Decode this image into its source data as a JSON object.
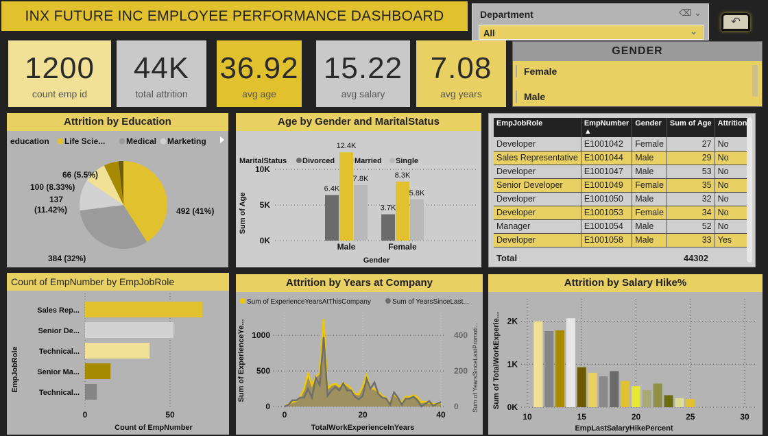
{
  "title": "INX FUTURE INC EMPLOYEE PERFORMANCE DASHBOARD",
  "department_slicer": {
    "label": "Department",
    "value": "All"
  },
  "kpis": [
    {
      "value": "1200",
      "label": "count emp id",
      "bg": "#f1e196"
    },
    {
      "value": "44K",
      "label": "total attrition",
      "bg": "#c9c9c9"
    },
    {
      "value": "36.92",
      "label": "avg age",
      "bg": "#e2c12e"
    },
    {
      "value": "15.22",
      "label": "avg salary",
      "bg": "#c9c9c9"
    },
    {
      "value": "7.08",
      "label": "avg years",
      "bg": "#e8d063"
    }
  ],
  "gender_slicer": {
    "title": "GENDER",
    "items": [
      "Female",
      "Male"
    ]
  },
  "table": {
    "headers": [
      "EmpJobRole",
      "EmpNumber",
      "Gender",
      "Sum of Age",
      "Attrition"
    ],
    "rows": [
      [
        "Developer",
        "E1001042",
        "Female",
        "27",
        "No"
      ],
      [
        "Sales Representative",
        "E1001044",
        "Male",
        "29",
        "No"
      ],
      [
        "Developer",
        "E1001047",
        "Male",
        "53",
        "No"
      ],
      [
        "Senior Developer",
        "E1001049",
        "Female",
        "35",
        "No"
      ],
      [
        "Developer",
        "E1001050",
        "Male",
        "32",
        "No"
      ],
      [
        "Developer",
        "E1001053",
        "Female",
        "34",
        "No"
      ],
      [
        "Manager",
        "E1001054",
        "Male",
        "52",
        "No"
      ],
      [
        "Developer",
        "E1001058",
        "Male",
        "33",
        "Yes"
      ]
    ],
    "total_label": "Total",
    "total_value": "44302"
  },
  "chart_data": [
    {
      "id": "pie",
      "type": "pie",
      "title": "Attrition by Education",
      "legend_title": "education",
      "legend": [
        "Life Scie...",
        "Medical",
        "Marketing"
      ],
      "slices": [
        {
          "value": 492,
          "label": "492 (41%)",
          "color": "#e2c12e"
        },
        {
          "value": 384,
          "label": "384 (32%)",
          "color": "#9b9b9b"
        },
        {
          "value": 137,
          "label": "137 (11.42%)",
          "color": "#d2d2d2"
        },
        {
          "value": 100,
          "label": "100 (8.33%)",
          "color": "#f1e196"
        },
        {
          "value": 66,
          "label": "66 (5.5%)",
          "color": "#a68a00"
        },
        {
          "value": 21,
          "label": "",
          "color": "#6b5a10"
        }
      ]
    },
    {
      "id": "age",
      "type": "bar",
      "title": "Age by Gender and MaritalStatus",
      "legend_title": "MaritalStatus",
      "categories": [
        "Male",
        "Female"
      ],
      "xlabel": "Gender",
      "ylabel": "Sum of Age",
      "ylim": [
        0,
        13000
      ],
      "yticks": [
        "0K",
        "5K",
        "10K"
      ],
      "series": [
        {
          "name": "Divorced",
          "color": "#6b6b6b",
          "values": [
            6400,
            3700
          ],
          "labels": [
            "6.4K",
            "3.7K"
          ]
        },
        {
          "name": "Married",
          "color": "#e2c12e",
          "values": [
            12400,
            8300
          ],
          "labels": [
            "12.4K",
            "8.3K"
          ]
        },
        {
          "name": "Single",
          "color": "#b9b9b9",
          "values": [
            7800,
            5800
          ],
          "labels": [
            "7.8K",
            "5.8K"
          ]
        }
      ]
    },
    {
      "id": "role",
      "type": "bar",
      "orientation": "horizontal",
      "title": "Count of EmpNumber by EmpJobRole",
      "categories": [
        "Sales Rep...",
        "Senior De...",
        "Technical...",
        "Senior Ma...",
        "Technical..."
      ],
      "values": [
        69,
        52,
        38,
        15,
        7
      ],
      "colors": [
        "#e2c12e",
        "#d2d2d2",
        "#f1e196",
        "#a68a00",
        "#858585"
      ],
      "xlabel": "Count of EmpNumber",
      "ylabel": "EmpJobRole",
      "xlim": [
        0,
        75
      ],
      "xticks": [
        0,
        50
      ]
    },
    {
      "id": "years",
      "type": "area",
      "title": "Attrition by Years at Company",
      "xlabel": "TotalWorkExperienceInYears",
      "ylabel": "Sum of ExperienceYe...",
      "y2label": "Sum of YearsSinceLastPromoti...",
      "xlim": [
        0,
        40
      ],
      "ylim": [
        0,
        1300
      ],
      "y2lim": [
        0,
        520
      ],
      "xticks": [
        0,
        20,
        40
      ],
      "yticks": [
        0,
        500,
        1000
      ],
      "y2ticks": [
        0,
        200,
        400
      ],
      "x": [
        0,
        1,
        2,
        3,
        4,
        5,
        6,
        7,
        8,
        9,
        10,
        11,
        12,
        13,
        14,
        15,
        16,
        17,
        18,
        19,
        20,
        21,
        22,
        23,
        24,
        25,
        26,
        27,
        28,
        29,
        30,
        31,
        32,
        33,
        34,
        35,
        36,
        37,
        38,
        39,
        40
      ],
      "series": [
        {
          "name": "Sum of ExperienceYearsAtThisCompany",
          "color": "#f0c800",
          "values": [
            0,
            40,
            60,
            80,
            130,
            250,
            460,
            300,
            420,
            470,
            1230,
            250,
            300,
            320,
            280,
            330,
            300,
            250,
            180,
            170,
            280,
            440,
            250,
            250,
            200,
            150,
            120,
            50,
            170,
            120,
            50,
            140,
            130,
            160,
            130,
            60,
            70,
            50,
            40,
            30,
            50
          ]
        },
        {
          "name": "Sum of YearsSinceLast...",
          "color": "#6e6e6e",
          "axis": "right",
          "values": [
            0,
            10,
            35,
            35,
            50,
            50,
            100,
            50,
            160,
            120,
            390,
            60,
            90,
            110,
            90,
            130,
            90,
            90,
            55,
            40,
            60,
            155,
            100,
            135,
            70,
            50,
            45,
            10,
            80,
            50,
            10,
            45,
            45,
            55,
            35,
            0,
            15,
            30,
            5,
            15,
            25
          ]
        }
      ]
    },
    {
      "id": "hike",
      "type": "bar",
      "title": "Attrition by Salary Hike%",
      "xlabel": "EmpLastSalaryHikePercent",
      "ylabel": "Sum of TotalWorkExperie...",
      "xlim": [
        10,
        30
      ],
      "ylim": [
        0,
        2600
      ],
      "xticks": [
        10,
        15,
        20,
        25,
        30
      ],
      "yticks": [
        "0K",
        "1K",
        "2K"
      ],
      "x": [
        11,
        12,
        13,
        14,
        15,
        16,
        17,
        18,
        19,
        20,
        21,
        22,
        23,
        24,
        25
      ],
      "values": [
        2000,
        1770,
        1790,
        2070,
        930,
        800,
        720,
        840,
        610,
        490,
        400,
        550,
        280,
        210,
        190
      ],
      "colors": [
        "#f1e196",
        "#858585",
        "#a68a00",
        "#e6e6e6",
        "#6b5a00",
        "#e8d063",
        "#8a8a8a",
        "#6b6b6b",
        "#e2c12e",
        "#e8e832",
        "#a9a978",
        "#8f8f45",
        "#6b6b10",
        "#dcdc96",
        "#e2c12e"
      ]
    }
  ]
}
